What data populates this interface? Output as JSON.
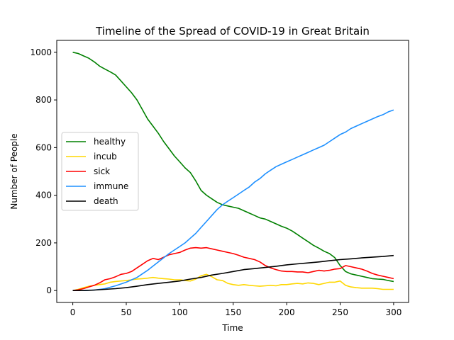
{
  "chart_data": {
    "type": "line",
    "title": "Timeline of the Spread of COVID-19 in Great Britain",
    "xlabel": "Time",
    "ylabel": "Number of People",
    "xlim": [
      -15,
      314
    ],
    "ylim": [
      -50,
      1050
    ],
    "xticks": [
      0,
      50,
      100,
      150,
      200,
      250,
      300
    ],
    "yticks": [
      0,
      200,
      400,
      600,
      800,
      1000
    ],
    "grid": false,
    "legend_position": "center-left",
    "series": [
      {
        "name": "healthy",
        "color": "#008000",
        "points": [
          [
            0,
            1000
          ],
          [
            5,
            995
          ],
          [
            10,
            985
          ],
          [
            15,
            975
          ],
          [
            20,
            960
          ],
          [
            25,
            942
          ],
          [
            30,
            930
          ],
          [
            35,
            918
          ],
          [
            40,
            905
          ],
          [
            45,
            880
          ],
          [
            50,
            855
          ],
          [
            55,
            830
          ],
          [
            60,
            800
          ],
          [
            65,
            760
          ],
          [
            70,
            720
          ],
          [
            75,
            690
          ],
          [
            80,
            660
          ],
          [
            85,
            625
          ],
          [
            90,
            595
          ],
          [
            95,
            565
          ],
          [
            100,
            540
          ],
          [
            105,
            515
          ],
          [
            110,
            495
          ],
          [
            115,
            460
          ],
          [
            120,
            420
          ],
          [
            125,
            400
          ],
          [
            130,
            385
          ],
          [
            135,
            370
          ],
          [
            140,
            360
          ],
          [
            145,
            355
          ],
          [
            150,
            350
          ],
          [
            155,
            345
          ],
          [
            160,
            335
          ],
          [
            165,
            325
          ],
          [
            170,
            315
          ],
          [
            175,
            305
          ],
          [
            180,
            300
          ],
          [
            185,
            290
          ],
          [
            190,
            280
          ],
          [
            195,
            270
          ],
          [
            200,
            262
          ],
          [
            205,
            250
          ],
          [
            210,
            235
          ],
          [
            215,
            220
          ],
          [
            220,
            205
          ],
          [
            225,
            190
          ],
          [
            230,
            178
          ],
          [
            235,
            165
          ],
          [
            240,
            155
          ],
          [
            245,
            138
          ],
          [
            250,
            105
          ],
          [
            255,
            80
          ],
          [
            260,
            70
          ],
          [
            265,
            65
          ],
          [
            270,
            60
          ],
          [
            275,
            55
          ],
          [
            280,
            50
          ],
          [
            285,
            48
          ],
          [
            290,
            47
          ],
          [
            295,
            42
          ],
          [
            300,
            38
          ]
        ]
      },
      {
        "name": "incub",
        "color": "#ffd700",
        "points": [
          [
            0,
            0
          ],
          [
            5,
            5
          ],
          [
            10,
            12
          ],
          [
            15,
            18
          ],
          [
            20,
            22
          ],
          [
            25,
            25
          ],
          [
            30,
            28
          ],
          [
            35,
            35
          ],
          [
            40,
            38
          ],
          [
            45,
            40
          ],
          [
            50,
            42
          ],
          [
            55,
            45
          ],
          [
            60,
            48
          ],
          [
            65,
            50
          ],
          [
            70,
            52
          ],
          [
            75,
            55
          ],
          [
            80,
            52
          ],
          [
            85,
            50
          ],
          [
            90,
            48
          ],
          [
            95,
            45
          ],
          [
            100,
            45
          ],
          [
            105,
            42
          ],
          [
            110,
            40
          ],
          [
            115,
            48
          ],
          [
            120,
            62
          ],
          [
            125,
            68
          ],
          [
            130,
            58
          ],
          [
            135,
            45
          ],
          [
            140,
            42
          ],
          [
            145,
            30
          ],
          [
            150,
            25
          ],
          [
            155,
            22
          ],
          [
            160,
            25
          ],
          [
            165,
            22
          ],
          [
            170,
            20
          ],
          [
            175,
            18
          ],
          [
            180,
            20
          ],
          [
            185,
            22
          ],
          [
            190,
            20
          ],
          [
            195,
            25
          ],
          [
            200,
            25
          ],
          [
            205,
            28
          ],
          [
            210,
            30
          ],
          [
            215,
            28
          ],
          [
            220,
            32
          ],
          [
            225,
            30
          ],
          [
            230,
            25
          ],
          [
            235,
            30
          ],
          [
            240,
            35
          ],
          [
            245,
            35
          ],
          [
            250,
            40
          ],
          [
            255,
            22
          ],
          [
            260,
            15
          ],
          [
            265,
            12
          ],
          [
            270,
            10
          ],
          [
            275,
            10
          ],
          [
            280,
            10
          ],
          [
            285,
            8
          ],
          [
            290,
            5
          ],
          [
            295,
            5
          ],
          [
            300,
            5
          ]
        ]
      },
      {
        "name": "sick",
        "color": "#ff0000",
        "points": [
          [
            0,
            0
          ],
          [
            5,
            3
          ],
          [
            10,
            8
          ],
          [
            15,
            15
          ],
          [
            20,
            22
          ],
          [
            25,
            32
          ],
          [
            30,
            45
          ],
          [
            35,
            50
          ],
          [
            40,
            58
          ],
          [
            45,
            68
          ],
          [
            50,
            72
          ],
          [
            55,
            80
          ],
          [
            60,
            95
          ],
          [
            65,
            110
          ],
          [
            70,
            125
          ],
          [
            75,
            135
          ],
          [
            80,
            130
          ],
          [
            85,
            140
          ],
          [
            90,
            150
          ],
          [
            95,
            155
          ],
          [
            100,
            160
          ],
          [
            105,
            170
          ],
          [
            110,
            178
          ],
          [
            115,
            180
          ],
          [
            120,
            178
          ],
          [
            125,
            180
          ],
          [
            130,
            175
          ],
          [
            135,
            170
          ],
          [
            140,
            165
          ],
          [
            145,
            160
          ],
          [
            150,
            155
          ],
          [
            155,
            148
          ],
          [
            160,
            140
          ],
          [
            165,
            135
          ],
          [
            170,
            130
          ],
          [
            175,
            120
          ],
          [
            180,
            105
          ],
          [
            185,
            95
          ],
          [
            190,
            88
          ],
          [
            195,
            82
          ],
          [
            200,
            80
          ],
          [
            205,
            80
          ],
          [
            210,
            78
          ],
          [
            215,
            78
          ],
          [
            220,
            75
          ],
          [
            225,
            80
          ],
          [
            230,
            85
          ],
          [
            235,
            82
          ],
          [
            240,
            85
          ],
          [
            245,
            90
          ],
          [
            250,
            92
          ],
          [
            255,
            105
          ],
          [
            260,
            100
          ],
          [
            265,
            95
          ],
          [
            270,
            90
          ],
          [
            275,
            82
          ],
          [
            280,
            72
          ],
          [
            285,
            65
          ],
          [
            290,
            60
          ],
          [
            295,
            55
          ],
          [
            300,
            50
          ]
        ]
      },
      {
        "name": "immune",
        "color": "#1e90ff",
        "points": [
          [
            0,
            0
          ],
          [
            10,
            0
          ],
          [
            20,
            2
          ],
          [
            30,
            8
          ],
          [
            40,
            20
          ],
          [
            50,
            35
          ],
          [
            60,
            55
          ],
          [
            70,
            85
          ],
          [
            80,
            120
          ],
          [
            90,
            155
          ],
          [
            95,
            170
          ],
          [
            100,
            185
          ],
          [
            105,
            200
          ],
          [
            110,
            220
          ],
          [
            115,
            240
          ],
          [
            120,
            265
          ],
          [
            125,
            290
          ],
          [
            130,
            315
          ],
          [
            135,
            340
          ],
          [
            140,
            360
          ],
          [
            145,
            375
          ],
          [
            150,
            390
          ],
          [
            155,
            405
          ],
          [
            160,
            420
          ],
          [
            165,
            435
          ],
          [
            170,
            455
          ],
          [
            175,
            470
          ],
          [
            180,
            490
          ],
          [
            185,
            505
          ],
          [
            190,
            520
          ],
          [
            195,
            530
          ],
          [
            200,
            540
          ],
          [
            205,
            550
          ],
          [
            210,
            560
          ],
          [
            215,
            570
          ],
          [
            220,
            580
          ],
          [
            225,
            590
          ],
          [
            230,
            600
          ],
          [
            235,
            610
          ],
          [
            240,
            625
          ],
          [
            245,
            640
          ],
          [
            250,
            655
          ],
          [
            255,
            665
          ],
          [
            260,
            680
          ],
          [
            265,
            690
          ],
          [
            270,
            700
          ],
          [
            275,
            710
          ],
          [
            280,
            720
          ],
          [
            285,
            730
          ],
          [
            290,
            738
          ],
          [
            295,
            750
          ],
          [
            300,
            758
          ]
        ]
      },
      {
        "name": "death",
        "color": "#000000",
        "points": [
          [
            0,
            0
          ],
          [
            10,
            0
          ],
          [
            20,
            2
          ],
          [
            30,
            5
          ],
          [
            40,
            8
          ],
          [
            50,
            12
          ],
          [
            60,
            18
          ],
          [
            70,
            25
          ],
          [
            80,
            30
          ],
          [
            90,
            35
          ],
          [
            100,
            40
          ],
          [
            110,
            48
          ],
          [
            120,
            55
          ],
          [
            130,
            65
          ],
          [
            140,
            72
          ],
          [
            150,
            80
          ],
          [
            160,
            88
          ],
          [
            170,
            92
          ],
          [
            180,
            97
          ],
          [
            190,
            102
          ],
          [
            200,
            108
          ],
          [
            210,
            112
          ],
          [
            220,
            116
          ],
          [
            230,
            120
          ],
          [
            240,
            125
          ],
          [
            250,
            130
          ],
          [
            260,
            133
          ],
          [
            270,
            137
          ],
          [
            280,
            140
          ],
          [
            290,
            143
          ],
          [
            300,
            147
          ]
        ]
      }
    ]
  }
}
